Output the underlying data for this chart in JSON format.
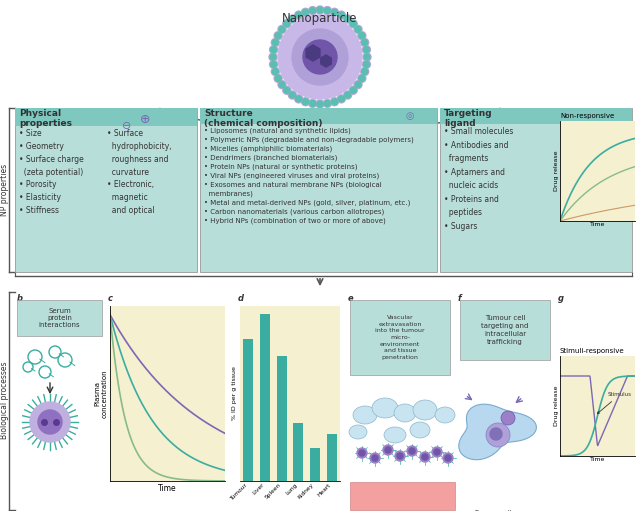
{
  "title": "Nanoparticle",
  "box_color_teal": "#7ec8c0",
  "box_color_light": "#b8deda",
  "box_color_yellow": "#f5f0d0",
  "text_color": "#333333",
  "purple": "#7b68b5",
  "teal": "#3aada0",
  "dark_teal": "#2a9080",
  "physical_title": "Physical\nproperties",
  "physical_col1": "• Size\n• Geometry\n• Surface charge\n  (zeta potential)\n• Porosity\n• Elasticity\n• Stiffness",
  "physical_col2": "• Surface\n  hydrophobicity,\n  roughness and\n  curvature\n• Electronic,\n  magnetic\n  and optical",
  "structure_title": "Structure\n(chemical composition)",
  "structure_items": "• Liposomes (natural and synthetic lipids)\n• Polymeric NPs (degradable and non-degradable polymers)\n• Micelles (amphiphilic biomaterials)\n• Dendrimers (branched biomaterials)\n• Protein NPs (natural or synthetic proteins)\n• Viral NPs (engineered viruses and viral proteins)\n• Exosomes and natural membrane NPs (biological\n  membranes)\n• Metal and metal-derived NPs (gold, silver, platinum, etc.)\n• Carbon nanomaterials (various carbon allotropes)\n• Hybrid NPs (combination of two or more of above)",
  "targeting_title": "Targeting\nligand",
  "targeting_items": "• Small molecules\n• Antibodies and\n  fragments\n• Aptamers and\n  nucleic acids\n• Proteins and\n  peptides\n• Sugars",
  "np_label": "NP properties",
  "bio_label": "Biological processes",
  "serum_text": "Serum\nprotein\ninteractions",
  "vascular_text": "Vascular\nextravasation\ninto the tumour\nmicro-\nenvironment\nand tissue\npenetration",
  "tumour_text": "Tumour cell\ntargeting and\nintracellular\ntrafficking",
  "bar_labels": [
    "Tumour",
    "Liver",
    "Spleen",
    "Lung",
    "Kidney",
    "Heart"
  ],
  "bar_values": [
    8.5,
    10.0,
    7.5,
    3.5,
    2.0,
    2.8
  ],
  "bar_color": "#3aada0",
  "non_responsive": "Non-responsive",
  "stimuli_responsive": "Stimuli-responsive",
  "stimulus_label": "Stimulus",
  "tumour_cell_label": "Tumour cell"
}
